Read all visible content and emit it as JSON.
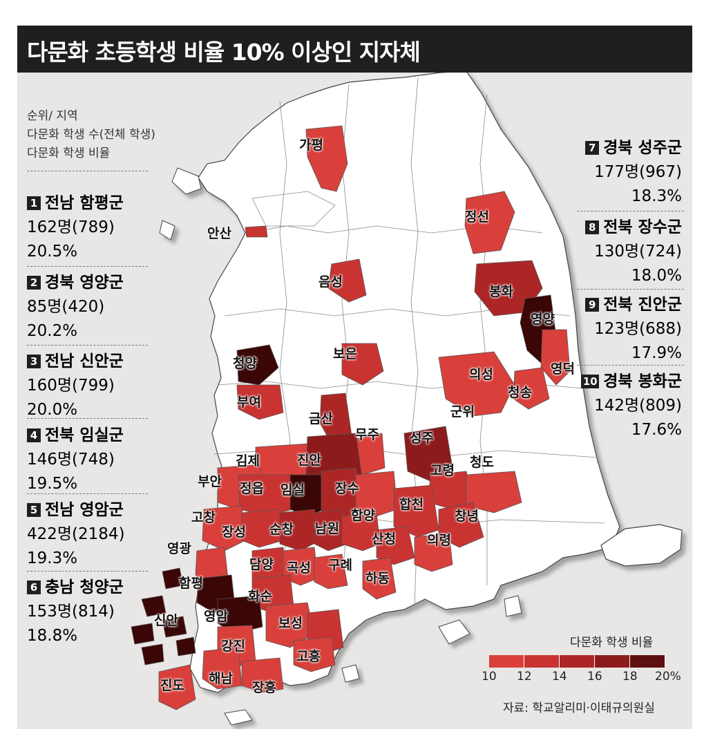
{
  "title": "다문화 초등학생 비율 10% 이상인 지자체",
  "legend_header": [
    "순위/ 지역",
    "다문화 학생 수(전체 학생)",
    "다문화 학생 비율"
  ],
  "rankings": [
    {
      "rank": "1",
      "region": "전남 함평군",
      "count": "162명(789)",
      "ratio": "20.5%"
    },
    {
      "rank": "2",
      "region": "경북 영양군",
      "count": "85명(420)",
      "ratio": "20.2%"
    },
    {
      "rank": "3",
      "region": "전남 신안군",
      "count": "160명(799)",
      "ratio": "20.0%"
    },
    {
      "rank": "4",
      "region": "전북 임실군",
      "count": "146명(748)",
      "ratio": "19.5%"
    },
    {
      "rank": "5",
      "region": "전남 영암군",
      "count": "422명(2184)",
      "ratio": "19.3%"
    },
    {
      "rank": "6",
      "region": "충남 청양군",
      "count": "153명(814)",
      "ratio": "18.8%"
    },
    {
      "rank": "7",
      "region": "경북 성주군",
      "count": "177명(967)",
      "ratio": "18.3%"
    },
    {
      "rank": "8",
      "region": "전북 장수군",
      "count": "130명(724)",
      "ratio": "18.0%"
    },
    {
      "rank": "9",
      "region": "전북 진안군",
      "count": "123명(688)",
      "ratio": "17.9%"
    },
    {
      "rank": "10",
      "region": "경북 봉화군",
      "count": "142명(809)",
      "ratio": "17.6%"
    }
  ],
  "map_labels": [
    "가평",
    "안산",
    "정선",
    "음성",
    "봉화",
    "영양",
    "보은",
    "영덕",
    "청양",
    "의성",
    "청송",
    "부여",
    "금산",
    "군위",
    "무주",
    "성주",
    "김제",
    "진안",
    "고령",
    "청도",
    "부안",
    "정읍",
    "임실",
    "장수",
    "합천",
    "고창",
    "함양",
    "창녕",
    "장성",
    "순창",
    "남원",
    "산청",
    "의령",
    "영광",
    "담양",
    "곡성",
    "구례",
    "하동",
    "함평",
    "화순",
    "신안",
    "영암",
    "보성",
    "강진",
    "고흥",
    "진도",
    "해남",
    "장흥"
  ],
  "scale": {
    "title": "다문화 학생 비율",
    "ticks": [
      "10",
      "12",
      "14",
      "16",
      "18",
      "20%"
    ],
    "colors": [
      "#d9403b",
      "#c93432",
      "#ad2626",
      "#8e1b1b",
      "#5e0f0f"
    ]
  },
  "source": "자료: 학교알리미·이태규의원실",
  "colors": {
    "land": "#ffffff",
    "border": "#555555",
    "highlight_low": "#d9403b",
    "highlight_high": "#3a0606",
    "background": "#e9e7e5"
  }
}
